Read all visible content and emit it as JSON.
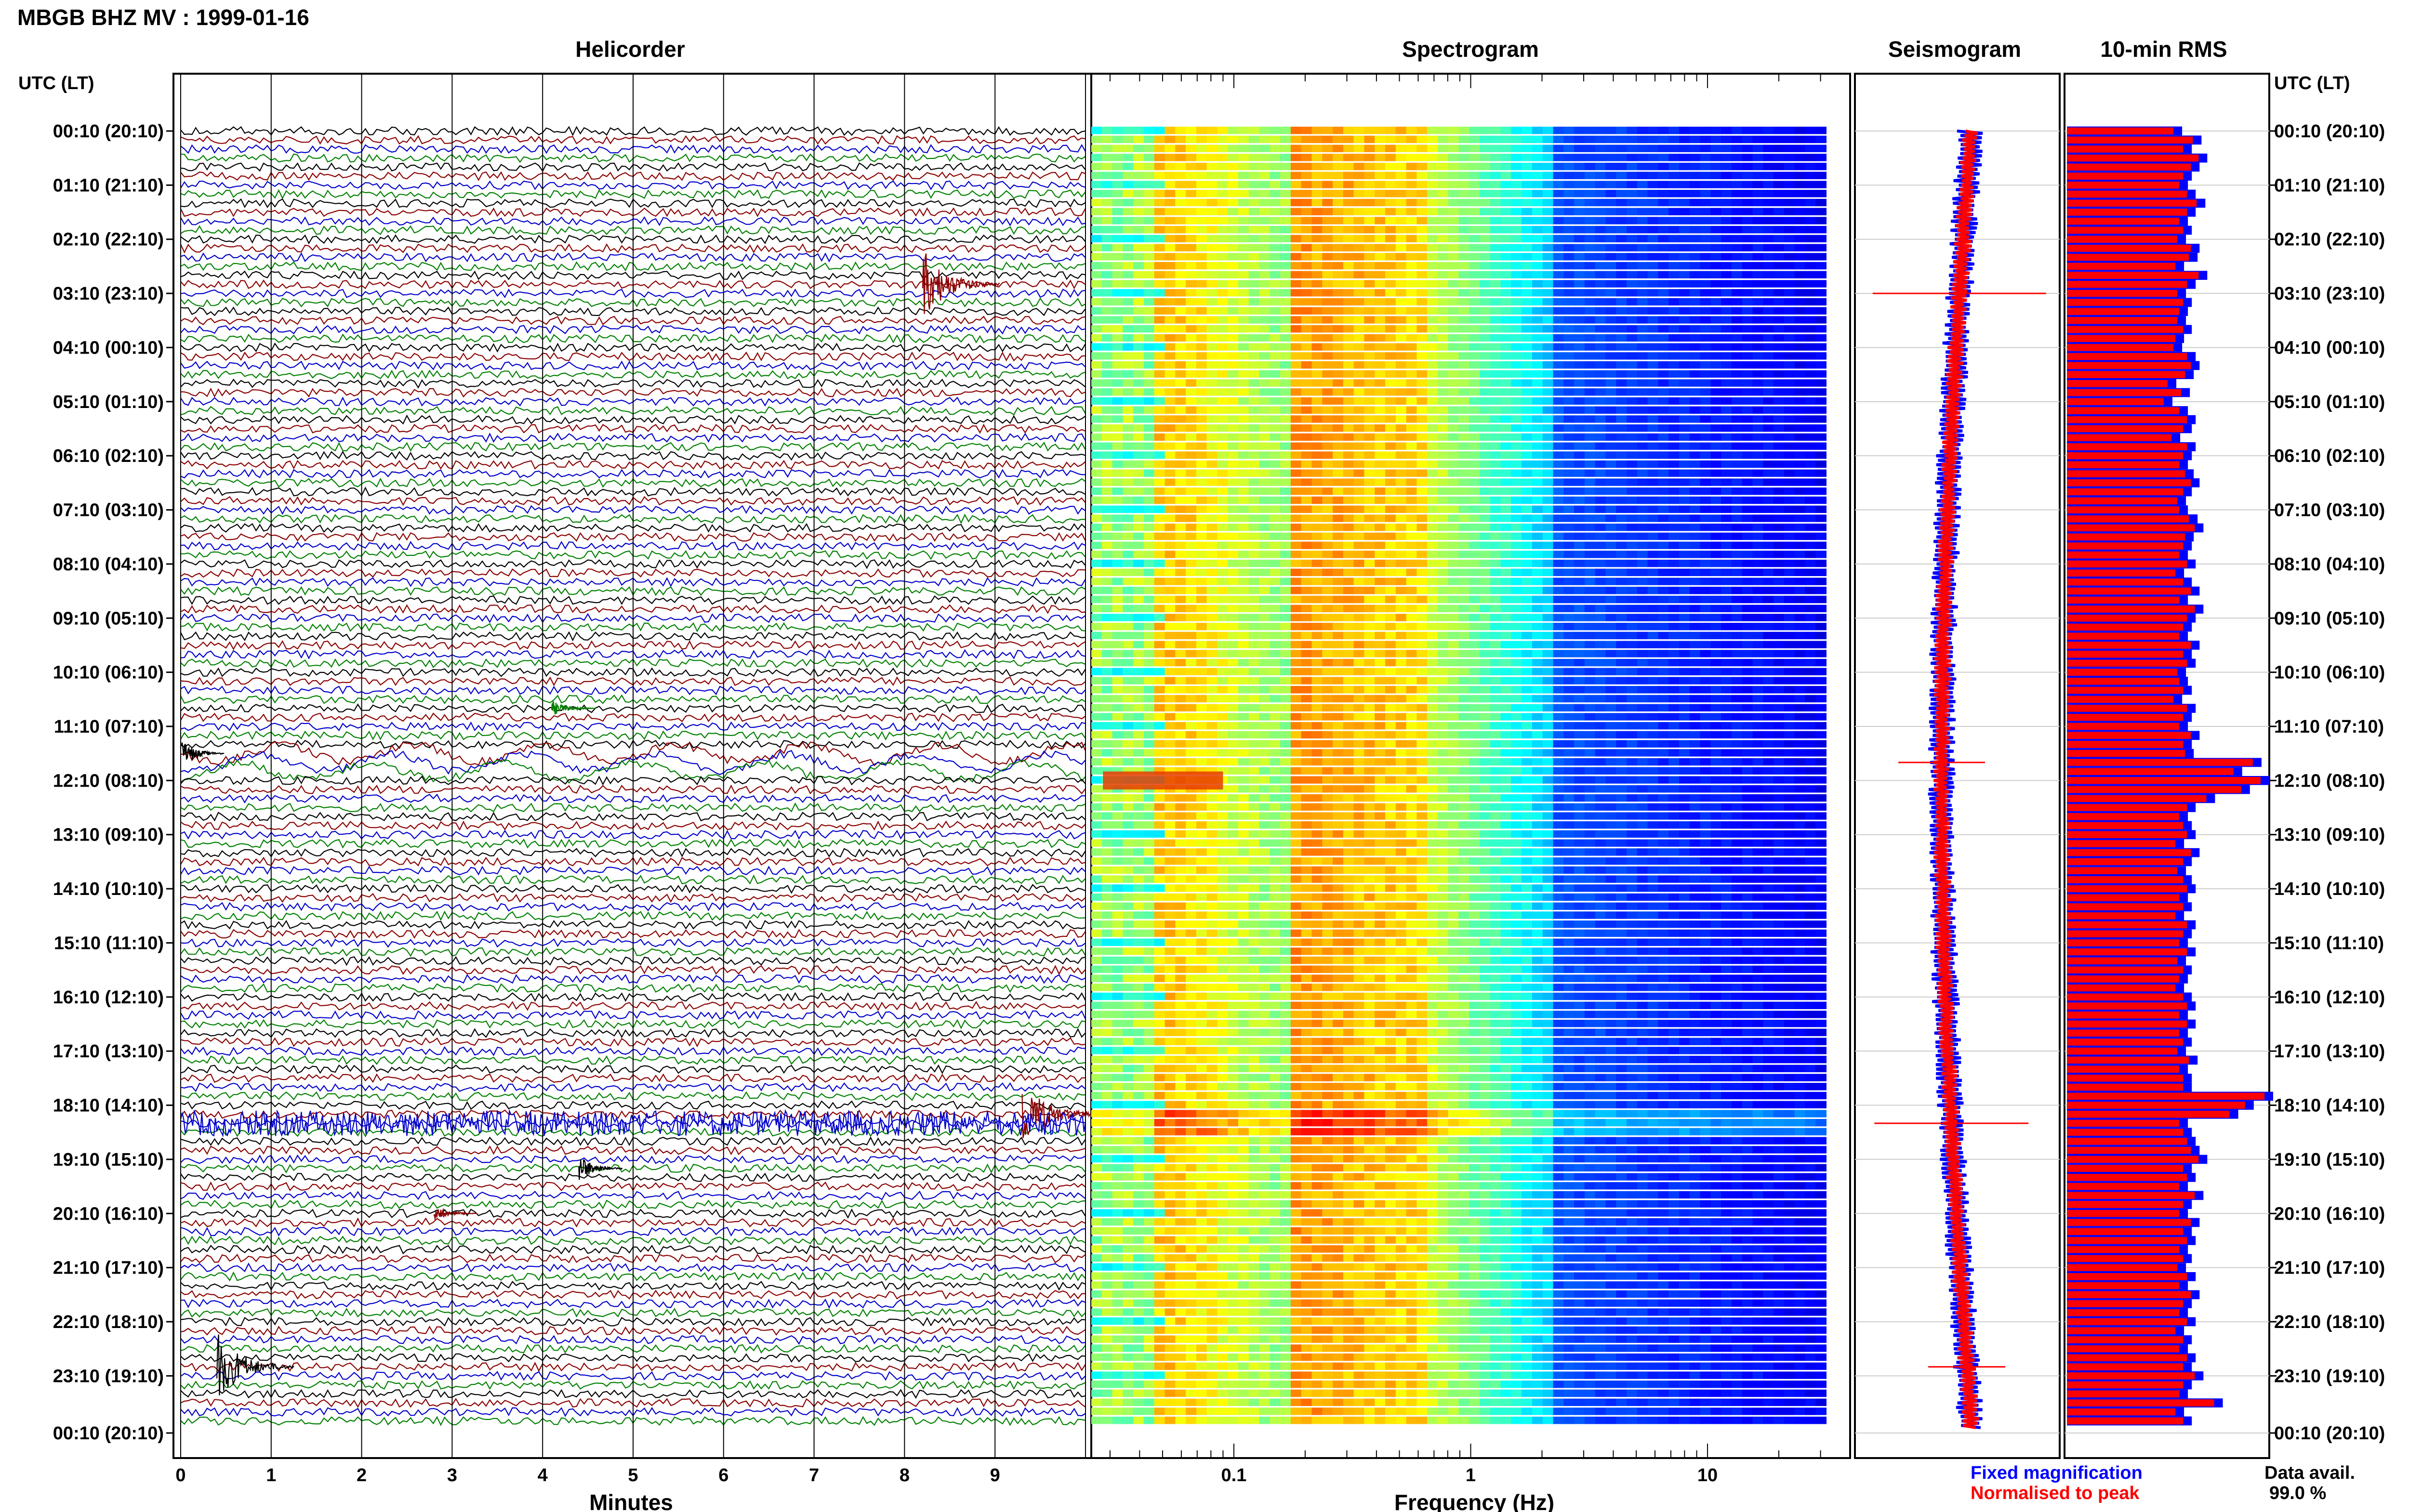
{
  "figure": {
    "title": "MBGB BHZ MV : 1999-01-16",
    "panel_titles": {
      "helicorder": "Helicorder",
      "spectrogram": "Spectrogram",
      "seismogram": "Seismogram",
      "rms": "10-min RMS"
    },
    "time_axis_header": "UTC (LT)",
    "time_labels": [
      "00:10 (20:10)",
      "01:10 (21:10)",
      "02:10 (22:10)",
      "03:10 (23:10)",
      "04:10 (00:10)",
      "05:10 (01:10)",
      "06:10 (02:10)",
      "07:10 (03:10)",
      "08:10 (04:10)",
      "09:10 (05:10)",
      "10:10 (06:10)",
      "11:10 (07:10)",
      "12:10 (08:10)",
      "13:10 (09:10)",
      "14:10 (10:10)",
      "15:10 (11:10)",
      "16:10 (12:10)",
      "17:10 (13:10)",
      "18:10 (14:10)",
      "19:10 (15:10)",
      "20:10 (16:10)",
      "21:10 (17:10)",
      "22:10 (18:10)",
      "23:10 (19:10)",
      "00:10 (20:10)"
    ],
    "helicorder_xlabel": "Minutes",
    "helicorder_ticks": [
      "0",
      "1",
      "2",
      "3",
      "4",
      "5",
      "6",
      "7",
      "8",
      "9"
    ],
    "spectrogram_xlabel": "Frequency (Hz)",
    "spectrogram_ticks": [
      "0.1",
      "1",
      "10"
    ],
    "legend": {
      "fixed": "Fixed magnification",
      "normalised": "Normalised to peak"
    },
    "data_avail_label": "Data avail.",
    "data_avail_value": "99.0 %",
    "colors": {
      "trace_cycle": [
        "#000000",
        "#8b0000",
        "#0000cc",
        "#008000"
      ],
      "fixed": "#0000ff",
      "normalised": "#ff0000"
    }
  },
  "chart_data": [
    {
      "type": "line",
      "title": "Helicorder",
      "xlabel": "Minutes",
      "xlim": [
        0,
        10
      ],
      "rows_per_hour": 6,
      "events": [
        {
          "time": "03:00",
          "minute": 8.2,
          "amplitude": "large",
          "color": "#8b0000"
        },
        {
          "time": "10:50",
          "minute": 4.1,
          "amplitude": "small",
          "color": "#008000"
        },
        {
          "time": "11:40",
          "minute": 0.0,
          "amplitude": "moderate",
          "note": "long-period wobble"
        },
        {
          "time": "18:20",
          "minute": 9.3,
          "amplitude": "large",
          "color": "#8b0000"
        },
        {
          "time": "18:30",
          "minute": 0.0,
          "amplitude": "large",
          "color": "#0000cc",
          "note": "continuous band"
        },
        {
          "time": "19:20",
          "minute": 4.4,
          "amplitude": "moderate",
          "color": "#000000"
        },
        {
          "time": "20:10",
          "minute": 2.8,
          "amplitude": "small",
          "color": "#8b0000"
        },
        {
          "time": "23:00",
          "minute": 0.4,
          "amplitude": "large",
          "color": "#000000"
        }
      ]
    },
    {
      "type": "heatmap",
      "title": "Spectrogram",
      "xlabel": "Frequency (Hz)",
      "xscale": "log",
      "xlim": [
        0.025,
        40
      ],
      "colormap": "jet",
      "rows": 144
    },
    {
      "type": "line",
      "title": "Seismogram",
      "series": [
        {
          "name": "Fixed magnification",
          "color": "#0000ff"
        },
        {
          "name": "Normalised to peak",
          "color": "#ff0000"
        }
      ]
    },
    {
      "type": "bar",
      "title": "10-min RMS",
      "orientation": "horizontal",
      "series": [
        {
          "name": "Fixed magnification",
          "color": "#0000ff"
        },
        {
          "name": "Normalised to peak",
          "color": "#ff0000"
        }
      ],
      "values": [
        55,
        65,
        60,
        68,
        64,
        60,
        58,
        62,
        67,
        62,
        58,
        60,
        57,
        64,
        63,
        56,
        68,
        62,
        57,
        60,
        58,
        57,
        60,
        56,
        55,
        62,
        64,
        61,
        52,
        59,
        50,
        58,
        62,
        60,
        54,
        62,
        60,
        58,
        61,
        64,
        60,
        57,
        58,
        63,
        66,
        61,
        60,
        58,
        62,
        56,
        60,
        64,
        58,
        66,
        62,
        60,
        58,
        64,
        60,
        62,
        57,
        58,
        60,
        55,
        62,
        60,
        58,
        64,
        60,
        61,
        96,
        86,
        100,
        90,
        72,
        62,
        58,
        60,
        62,
        56,
        64,
        60,
        57,
        60,
        62,
        58,
        60,
        56,
        62,
        60,
        58,
        62,
        57,
        60,
        58,
        56,
        60,
        62,
        58,
        62,
        58,
        60,
        57,
        63,
        58,
        60,
        60,
        102,
        92,
        84,
        58,
        60,
        62,
        64,
        68,
        60,
        62,
        58,
        66,
        60,
        58,
        64,
        60,
        62,
        58,
        60,
        57,
        62,
        58,
        64,
        60,
        58,
        62,
        56,
        60,
        58,
        62,
        60,
        66,
        60,
        58,
        76,
        56,
        60
      ]
    }
  ]
}
